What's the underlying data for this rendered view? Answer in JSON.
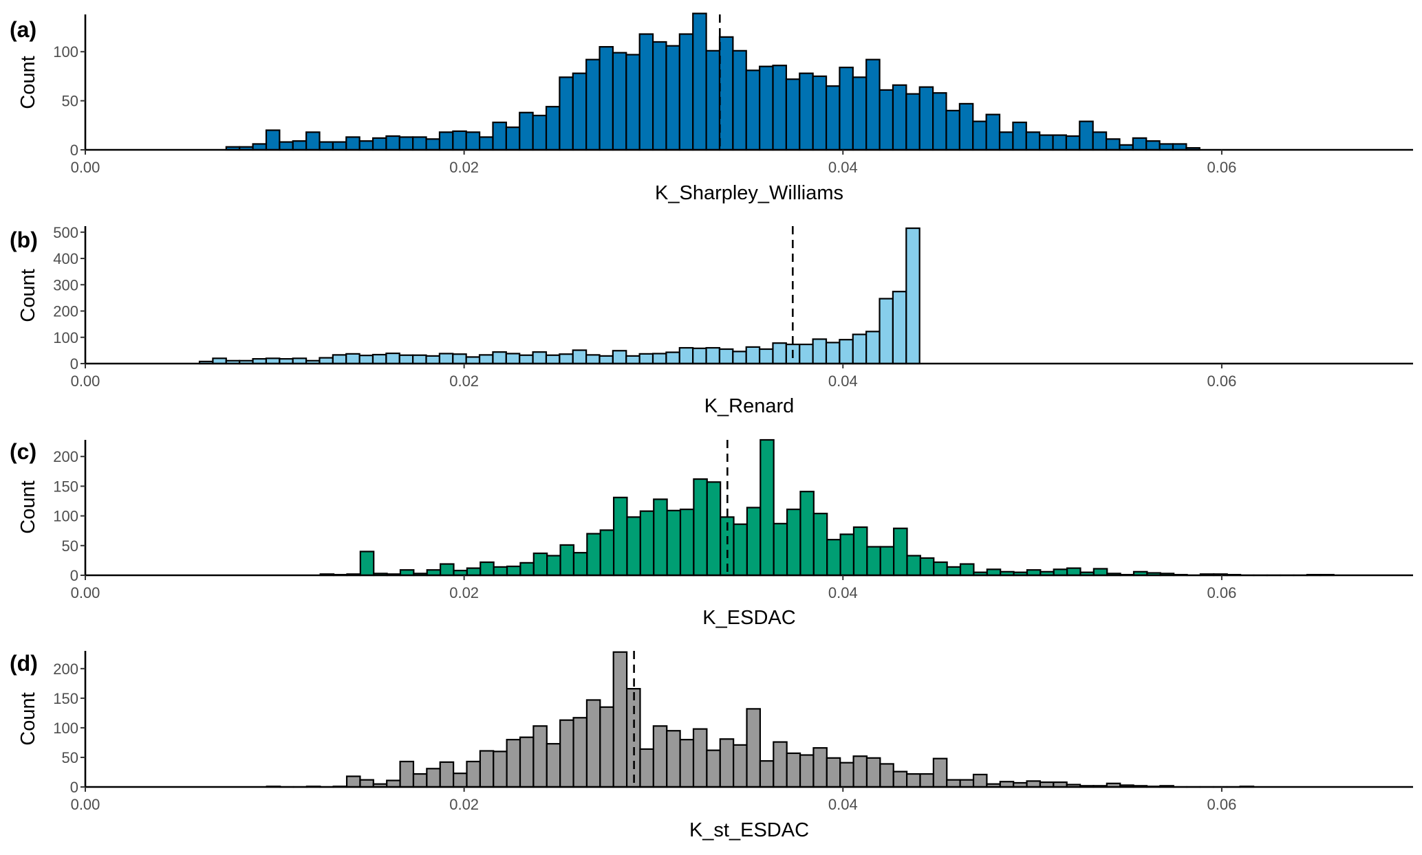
{
  "chart_data": [
    {
      "type": "bar",
      "panel_label": "(a)",
      "xlabel": "K_Sharpley_Williams",
      "ylabel": "Count",
      "fill_color": "#0072B2",
      "xlim": [
        0,
        0.0701
      ],
      "ylim": [
        0,
        138
      ],
      "x_ticks": [
        "0.00",
        "0.02",
        "0.04",
        "0.06"
      ],
      "x_tick_values": [
        0,
        0.02,
        0.04,
        0.06
      ],
      "y_ticks": [
        "0",
        "50",
        "100"
      ],
      "y_tick_values": [
        0,
        50,
        100
      ],
      "bin_start": 0.00744,
      "bin_width": 0.000704,
      "mean_line": 0.0335,
      "values": [
        3,
        3,
        6,
        20,
        8,
        9,
        18,
        8,
        8,
        13,
        9,
        12,
        14,
        13,
        13,
        11,
        18,
        19,
        18,
        13,
        28,
        23,
        38,
        35,
        44,
        74,
        78,
        92,
        105,
        99,
        97,
        118,
        110,
        106,
        118,
        139,
        101,
        115,
        101,
        81,
        85,
        86,
        72,
        78,
        75,
        65,
        84,
        74,
        92,
        61,
        66,
        57,
        64,
        58,
        40,
        47,
        29,
        36,
        18,
        28,
        18,
        15,
        15,
        14,
        29,
        18,
        11,
        5,
        12,
        9,
        6,
        6,
        2
      ]
    },
    {
      "type": "bar",
      "panel_label": "(b)",
      "xlabel": "K_Renard",
      "ylabel": "Count",
      "fill_color": "#87CEEB",
      "xlim": [
        0,
        0.0701
      ],
      "ylim": [
        0,
        523
      ],
      "x_ticks": [
        "0.00",
        "0.02",
        "0.04",
        "0.06"
      ],
      "x_tick_values": [
        0,
        0.02,
        0.04,
        0.06
      ],
      "y_ticks": [
        "0",
        "100",
        "200",
        "300",
        "400",
        "500"
      ],
      "y_tick_values": [
        0,
        100,
        200,
        300,
        400,
        500
      ],
      "bin_start": 0.00603,
      "bin_width": 0.000704,
      "mean_line": 0.03735,
      "values": [
        8,
        20,
        11,
        11,
        18,
        20,
        18,
        20,
        11,
        22,
        33,
        37,
        31,
        34,
        39,
        32,
        32,
        29,
        38,
        36,
        25,
        33,
        44,
        38,
        32,
        44,
        32,
        36,
        51,
        33,
        29,
        49,
        29,
        37,
        38,
        43,
        60,
        58,
        60,
        55,
        46,
        63,
        55,
        78,
        73,
        73,
        93,
        80,
        91,
        111,
        122,
        247,
        274,
        515
      ]
    },
    {
      "type": "bar",
      "panel_label": "(c)",
      "xlabel": "K_ESDAC",
      "ylabel": "Count",
      "fill_color": "#009E73",
      "xlim": [
        0,
        0.0701
      ],
      "ylim": [
        0,
        228
      ],
      "x_ticks": [
        "0.00",
        "0.02",
        "0.04",
        "0.06"
      ],
      "x_tick_values": [
        0,
        0.02,
        0.04,
        0.06
      ],
      "y_ticks": [
        "0",
        "50",
        "100",
        "150",
        "200"
      ],
      "y_tick_values": [
        0,
        50,
        100,
        150,
        200
      ],
      "bin_start": 0.01241,
      "bin_width": 0.000704,
      "mean_line": 0.0339,
      "values": [
        2,
        1,
        2,
        40,
        3,
        2,
        9,
        3,
        9,
        19,
        8,
        12,
        22,
        14,
        15,
        21,
        37,
        33,
        51,
        38,
        70,
        76,
        131,
        98,
        108,
        128,
        109,
        111,
        162,
        157,
        98,
        86,
        114,
        228,
        87,
        111,
        141,
        104,
        60,
        69,
        81,
        48,
        48,
        79,
        33,
        29,
        22,
        14,
        19,
        5,
        10,
        6,
        5,
        9,
        6,
        10,
        12,
        5,
        11,
        3,
        1,
        6,
        4,
        3,
        1,
        0,
        2,
        2,
        1,
        0,
        0,
        0,
        0,
        0,
        1,
        1
      ]
    },
    {
      "type": "bar",
      "panel_label": "(d)",
      "xlabel": "K_st_ESDAC",
      "ylabel": "Count",
      "fill_color": "#999999",
      "xlim": [
        0,
        0.0701
      ],
      "ylim": [
        0,
        230
      ],
      "x_ticks": [
        "0.00",
        "0.02",
        "0.04",
        "0.06"
      ],
      "x_tick_values": [
        0,
        0.02,
        0.04,
        0.06
      ],
      "y_ticks": [
        "0",
        "50",
        "100",
        "150",
        "200"
      ],
      "y_tick_values": [
        0,
        50,
        100,
        150,
        200
      ],
      "bin_start": 0.00958,
      "bin_width": 0.000704,
      "mean_line": 0.02897,
      "values": [
        1,
        0,
        0,
        1,
        0,
        1,
        18,
        12,
        5,
        11,
        43,
        22,
        31,
        42,
        23,
        43,
        61,
        60,
        80,
        84,
        103,
        73,
        113,
        117,
        147,
        135,
        228,
        166,
        64,
        103,
        95,
        80,
        98,
        62,
        81,
        71,
        132,
        44,
        76,
        57,
        54,
        66,
        49,
        41,
        52,
        49,
        39,
        26,
        22,
        22,
        48,
        12,
        12,
        21,
        5,
        9,
        7,
        10,
        8,
        8,
        4,
        2,
        2,
        6,
        3,
        2,
        1,
        2,
        0,
        0,
        0,
        0,
        0,
        1
      ]
    }
  ]
}
